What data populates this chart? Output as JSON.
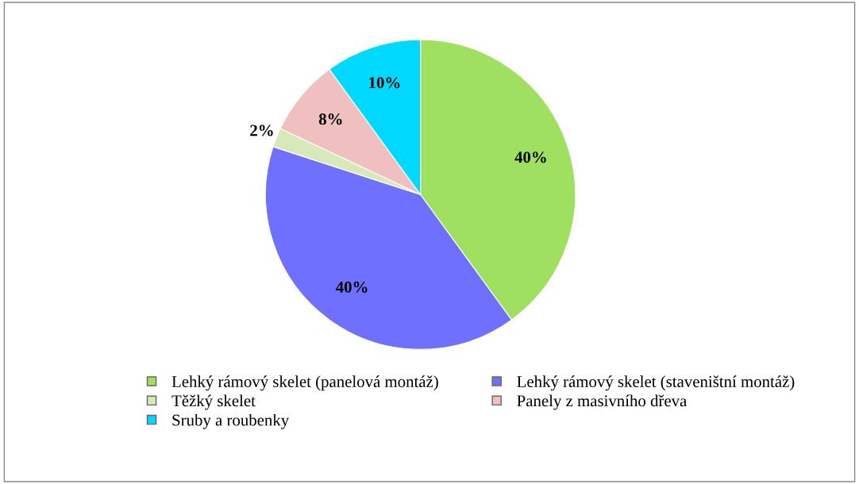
{
  "chart_data": {
    "type": "pie",
    "categories": [
      "Lehký rámový skelet (panelová montáž)",
      "Lehký rámový skelet (staveništní montáž)",
      "Těžký skelet",
      "Panely z masivního dřeva",
      "Sruby a roubenky"
    ],
    "values": [
      40,
      40,
      2,
      8,
      10
    ],
    "colors": [
      "#a0e060",
      "#7070ff",
      "#d8e8b8",
      "#f0c0c0",
      "#00d8ff"
    ],
    "value_labels": [
      "40%",
      "40%",
      "2%",
      "8%",
      "10%"
    ],
    "legend": "bottom"
  }
}
